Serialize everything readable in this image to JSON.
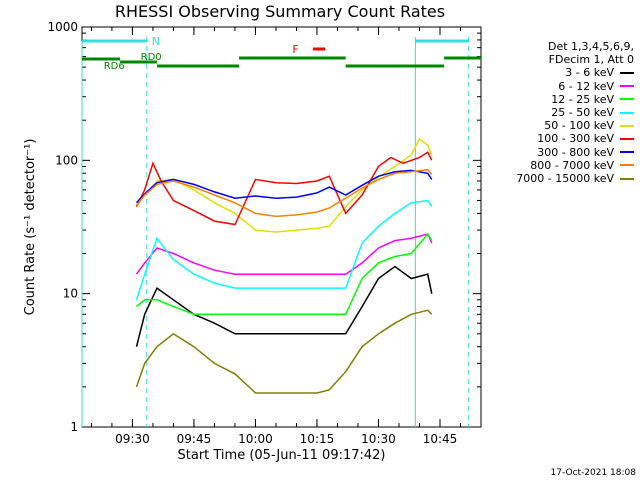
{
  "title": "RHESSI Observing Summary Count Rates",
  "footer_timestamp": "17-Oct-2021 18:08",
  "legend": {
    "header": [
      "Det 1,3,4,5,6,9,",
      "FDecim 1, Att 0"
    ],
    "entries": [
      {
        "label": "3 - 6 keV",
        "color": "#000000"
      },
      {
        "label": "6 - 12 keV",
        "color": "#ff00ff"
      },
      {
        "label": "12 - 25 keV",
        "color": "#00ff00"
      },
      {
        "label": "25 - 50 keV",
        "color": "#00ffff"
      },
      {
        "label": "50 - 100 keV",
        "color": "#e0e000"
      },
      {
        "label": "100 - 300 keV",
        "color": "#ff0000"
      },
      {
        "label": "300 - 800 keV",
        "color": "#0000ff"
      },
      {
        "label": "800 - 7000 keV",
        "color": "#ff8000"
      },
      {
        "label": "7000 - 15000 keV",
        "color": "#808000"
      }
    ]
  },
  "annotations": {
    "N": "N",
    "F": "F",
    "RD0": "RD0",
    "RD6": "RD6"
  },
  "chart_data": {
    "type": "line",
    "title": "RHESSI Observing Summary Count Rates",
    "xlabel": "Start Time (05-Jun-11 09:17:42)",
    "ylabel": "Count Rate (s⁻¹ detector⁻¹)",
    "y_scale": "log",
    "ylim": [
      1,
      1000
    ],
    "xlim": [
      "09:17:42",
      "10:55"
    ],
    "x_tick_labels": [
      "09:30",
      "09:45",
      "10:00",
      "10:15",
      "10:30",
      "10:45"
    ],
    "y_tick_labels": [
      "1",
      "10",
      "100",
      "1000"
    ],
    "series": [
      {
        "name": "3 - 6 keV",
        "color": "#000000",
        "points": [
          [
            "09:31",
            4
          ],
          [
            "09:33",
            7
          ],
          [
            "09:36",
            11
          ],
          [
            "09:40",
            9
          ],
          [
            "09:45",
            7
          ],
          [
            "09:50",
            6
          ],
          [
            "09:55",
            5
          ],
          [
            "10:00",
            5
          ],
          [
            "10:05",
            5
          ],
          [
            "10:10",
            5
          ],
          [
            "10:15",
            5
          ],
          [
            "10:18",
            5
          ],
          [
            "10:22",
            5
          ],
          [
            "10:26",
            8
          ],
          [
            "10:30",
            13
          ],
          [
            "10:34",
            16
          ],
          [
            "10:38",
            13
          ],
          [
            "10:42",
            14
          ],
          [
            "10:43",
            10
          ]
        ]
      },
      {
        "name": "6 - 12 keV",
        "color": "#ff00ff",
        "points": [
          [
            "09:31",
            14
          ],
          [
            "09:33",
            17
          ],
          [
            "09:36",
            22
          ],
          [
            "09:40",
            20
          ],
          [
            "09:45",
            17
          ],
          [
            "09:50",
            15
          ],
          [
            "09:55",
            14
          ],
          [
            "10:00",
            14
          ],
          [
            "10:05",
            14
          ],
          [
            "10:10",
            14
          ],
          [
            "10:15",
            14
          ],
          [
            "10:18",
            14
          ],
          [
            "10:22",
            14
          ],
          [
            "10:26",
            17
          ],
          [
            "10:30",
            22
          ],
          [
            "10:34",
            25
          ],
          [
            "10:38",
            26
          ],
          [
            "10:42",
            28
          ],
          [
            "10:43",
            24
          ]
        ]
      },
      {
        "name": "12 - 25 keV",
        "color": "#00ff00",
        "points": [
          [
            "09:31",
            8
          ],
          [
            "09:33",
            9
          ],
          [
            "09:36",
            9
          ],
          [
            "09:40",
            8
          ],
          [
            "09:45",
            7
          ],
          [
            "09:50",
            7
          ],
          [
            "09:55",
            7
          ],
          [
            "10:00",
            7
          ],
          [
            "10:05",
            7
          ],
          [
            "10:10",
            7
          ],
          [
            "10:15",
            7
          ],
          [
            "10:18",
            7
          ],
          [
            "10:22",
            7
          ],
          [
            "10:26",
            13
          ],
          [
            "10:30",
            17
          ],
          [
            "10:34",
            19
          ],
          [
            "10:38",
            20
          ],
          [
            "10:42",
            28
          ],
          [
            "10:43",
            25
          ]
        ]
      },
      {
        "name": "25 - 50 keV",
        "color": "#00ffff",
        "points": [
          [
            "09:31",
            9
          ],
          [
            "09:33",
            14
          ],
          [
            "09:36",
            26
          ],
          [
            "09:40",
            18
          ],
          [
            "09:45",
            14
          ],
          [
            "09:50",
            12
          ],
          [
            "09:55",
            11
          ],
          [
            "10:00",
            11
          ],
          [
            "10:05",
            11
          ],
          [
            "10:10",
            11
          ],
          [
            "10:15",
            11
          ],
          [
            "10:18",
            11
          ],
          [
            "10:22",
            11
          ],
          [
            "10:26",
            24
          ],
          [
            "10:30",
            32
          ],
          [
            "10:34",
            40
          ],
          [
            "10:38",
            48
          ],
          [
            "10:42",
            50
          ],
          [
            "10:43",
            45
          ]
        ]
      },
      {
        "name": "50 - 100 keV",
        "color": "#e0e000",
        "points": [
          [
            "09:31",
            45
          ],
          [
            "09:33",
            55
          ],
          [
            "09:36",
            70
          ],
          [
            "09:40",
            72
          ],
          [
            "09:45",
            60
          ],
          [
            "09:50",
            48
          ],
          [
            "09:55",
            40
          ],
          [
            "10:00",
            30
          ],
          [
            "10:05",
            29
          ],
          [
            "10:10",
            30
          ],
          [
            "10:15",
            31
          ],
          [
            "10:18",
            32
          ],
          [
            "10:22",
            45
          ],
          [
            "10:26",
            60
          ],
          [
            "10:30",
            75
          ],
          [
            "10:34",
            90
          ],
          [
            "10:38",
            110
          ],
          [
            "10:40",
            145
          ],
          [
            "10:42",
            130
          ],
          [
            "10:43",
            110
          ]
        ]
      },
      {
        "name": "100 - 300 keV",
        "color": "#ff0000",
        "points": [
          [
            "09:31",
            45
          ],
          [
            "09:33",
            60
          ],
          [
            "09:35",
            95
          ],
          [
            "09:37",
            70
          ],
          [
            "09:40",
            50
          ],
          [
            "09:45",
            42
          ],
          [
            "09:50",
            35
          ],
          [
            "09:55",
            33
          ],
          [
            "10:00",
            72
          ],
          [
            "10:05",
            68
          ],
          [
            "10:10",
            67
          ],
          [
            "10:15",
            70
          ],
          [
            "10:18",
            76
          ],
          [
            "10:22",
            40
          ],
          [
            "10:26",
            55
          ],
          [
            "10:30",
            90
          ],
          [
            "10:33",
            105
          ],
          [
            "10:36",
            95
          ],
          [
            "10:40",
            105
          ],
          [
            "10:42",
            115
          ],
          [
            "10:43",
            100
          ]
        ]
      },
      {
        "name": "300 - 800 keV",
        "color": "#0000ff",
        "points": [
          [
            "09:31",
            48
          ],
          [
            "09:33",
            56
          ],
          [
            "09:36",
            68
          ],
          [
            "09:40",
            72
          ],
          [
            "09:45",
            66
          ],
          [
            "09:50",
            58
          ],
          [
            "09:55",
            52
          ],
          [
            "10:00",
            54
          ],
          [
            "10:05",
            52
          ],
          [
            "10:10",
            53
          ],
          [
            "10:15",
            57
          ],
          [
            "10:18",
            63
          ],
          [
            "10:22",
            55
          ],
          [
            "10:26",
            65
          ],
          [
            "10:30",
            76
          ],
          [
            "10:34",
            82
          ],
          [
            "10:38",
            84
          ],
          [
            "10:42",
            80
          ],
          [
            "10:43",
            72
          ]
        ]
      },
      {
        "name": "800 - 7000 keV",
        "color": "#ff8000",
        "points": [
          [
            "09:31",
            46
          ],
          [
            "09:33",
            55
          ],
          [
            "09:36",
            66
          ],
          [
            "09:40",
            70
          ],
          [
            "09:45",
            63
          ],
          [
            "09:50",
            55
          ],
          [
            "09:55",
            48
          ],
          [
            "10:00",
            40
          ],
          [
            "10:05",
            38
          ],
          [
            "10:10",
            39
          ],
          [
            "10:15",
            41
          ],
          [
            "10:18",
            44
          ],
          [
            "10:22",
            52
          ],
          [
            "10:26",
            62
          ],
          [
            "10:30",
            72
          ],
          [
            "10:34",
            80
          ],
          [
            "10:38",
            82
          ],
          [
            "10:42",
            85
          ],
          [
            "10:43",
            78
          ]
        ]
      },
      {
        "name": "7000 - 15000 keV",
        "color": "#808000",
        "points": [
          [
            "09:31",
            2
          ],
          [
            "09:33",
            3
          ],
          [
            "09:36",
            4
          ],
          [
            "09:40",
            5
          ],
          [
            "09:45",
            4
          ],
          [
            "09:50",
            3
          ],
          [
            "09:55",
            2.5
          ],
          [
            "10:00",
            1.8
          ],
          [
            "10:05",
            1.8
          ],
          [
            "10:10",
            1.8
          ],
          [
            "10:15",
            1.8
          ],
          [
            "10:18",
            1.9
          ],
          [
            "10:22",
            2.6
          ],
          [
            "10:26",
            4
          ],
          [
            "10:30",
            5
          ],
          [
            "10:34",
            6
          ],
          [
            "10:38",
            7
          ],
          [
            "10:42",
            7.5
          ],
          [
            "10:43",
            7
          ]
        ]
      }
    ]
  }
}
